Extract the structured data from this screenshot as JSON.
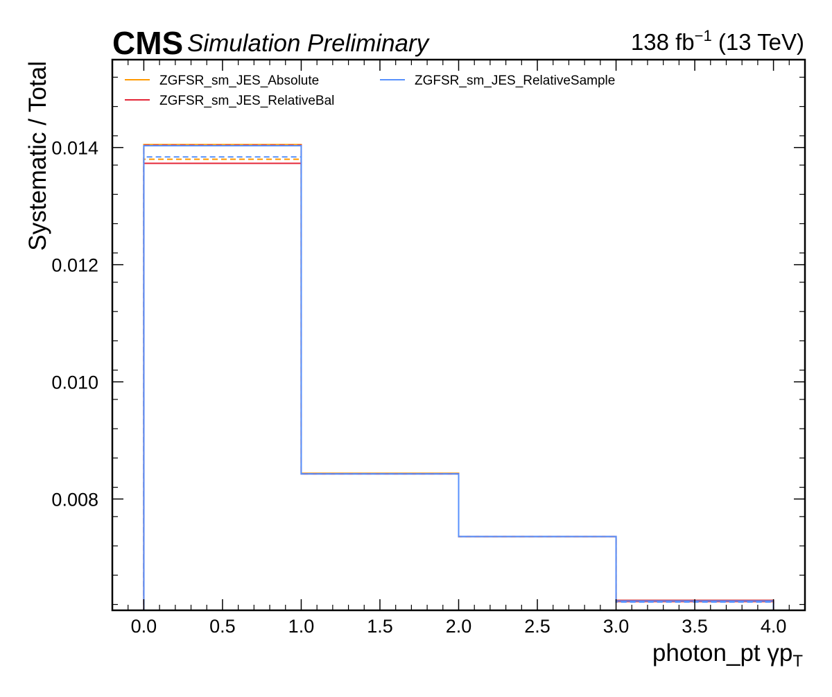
{
  "header": {
    "cms": "CMS",
    "status": "Simulation Preliminary",
    "lumi_value": "138 fb",
    "lumi_exp": "−1",
    "energy": " (13 TeV)"
  },
  "chart_data": {
    "type": "line",
    "xlabel": "photon_pt   γp",
    "xlabel_sub": "T",
    "ylabel": "Systematic / Total",
    "xlim": [
      -0.2,
      4.2
    ],
    "ylim": [
      0.0061,
      0.0155
    ],
    "grid": false,
    "legend_position": "top-left",
    "x_ticks": [
      {
        "value": 0.0,
        "label": "0.0"
      },
      {
        "value": 0.5,
        "label": "0.5"
      },
      {
        "value": 1.0,
        "label": "1.0"
      },
      {
        "value": 1.5,
        "label": "1.5"
      },
      {
        "value": 2.0,
        "label": "2.0"
      },
      {
        "value": 2.5,
        "label": "2.5"
      },
      {
        "value": 3.0,
        "label": "3.0"
      },
      {
        "value": 3.5,
        "label": "3.5"
      },
      {
        "value": 4.0,
        "label": "4.0"
      }
    ],
    "y_ticks": [
      {
        "value": 0.008,
        "label": "0.008"
      },
      {
        "value": 0.01,
        "label": "0.010"
      },
      {
        "value": 0.012,
        "label": "0.012"
      },
      {
        "value": 0.014,
        "label": "0.014"
      }
    ],
    "bin_edges": [
      0,
      1,
      2,
      3,
      4
    ],
    "series": [
      {
        "name": "ZGFSR_sm_JES_Absolute",
        "color": "#ff9900",
        "up": [
          0.01405,
          0.00844,
          0.00736,
          0.00627
        ],
        "down": [
          0.0138,
          0.00843,
          0.00736,
          0.00625
        ]
      },
      {
        "name": "ZGFSR_sm_JES_RelativeBal",
        "color": "#e42536",
        "up": [
          0.01373,
          0.00843,
          0.00736,
          0.00627
        ],
        "down": [
          0.01404,
          0.00843,
          0.00736,
          0.00625
        ]
      },
      {
        "name": "ZGFSR_sm_JES_RelativeSample",
        "color": "#5790fc",
        "up": [
          0.01403,
          0.00843,
          0.00736,
          0.00626
        ],
        "down": [
          0.01384,
          0.00843,
          0.00736,
          0.00624
        ]
      }
    ]
  }
}
